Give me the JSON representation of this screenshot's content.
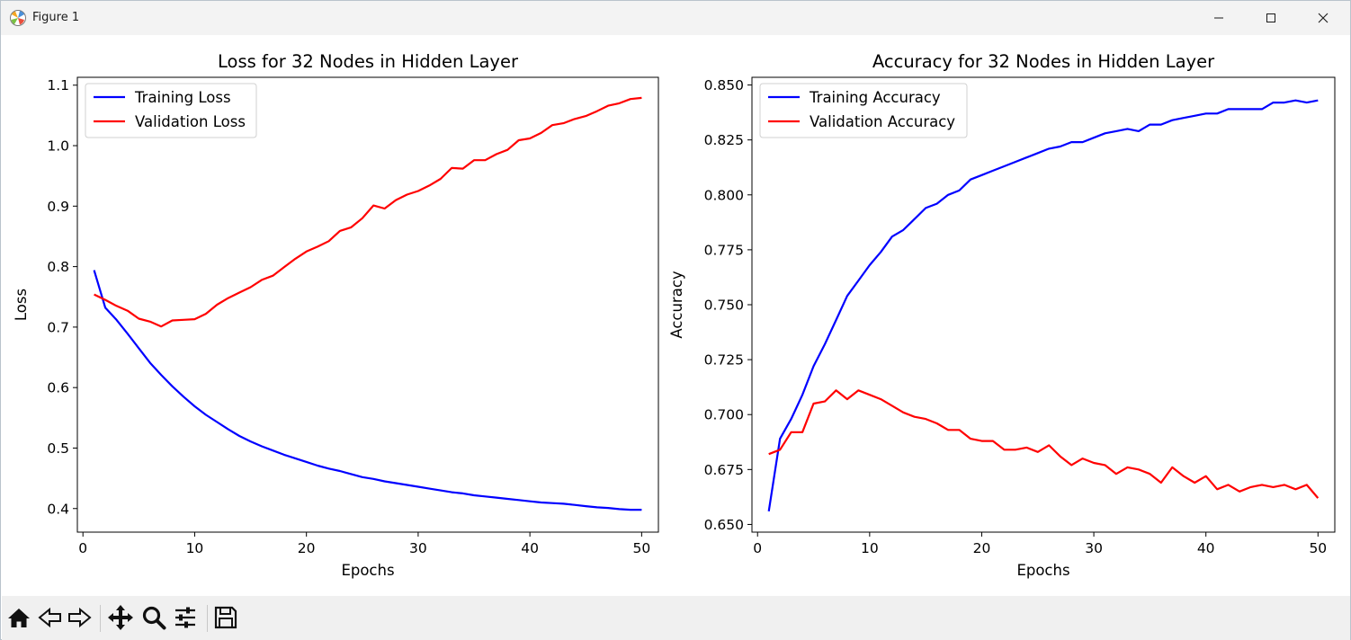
{
  "window": {
    "title": "Figure 1"
  },
  "toolbar": {
    "buttons": [
      {
        "name": "home-icon"
      },
      {
        "name": "back-arrow-icon"
      },
      {
        "name": "forward-arrow-icon"
      },
      {
        "name": "pan-icon"
      },
      {
        "name": "zoom-icon"
      },
      {
        "name": "configure-subplots-icon"
      },
      {
        "name": "save-icon"
      }
    ]
  },
  "chart_data": [
    {
      "type": "line",
      "title": "Loss for 32 Nodes in Hidden Layer",
      "xlabel": "Epochs",
      "ylabel": "Loss",
      "xlim": [
        -0.5,
        51.5
      ],
      "ylim": [
        0.361,
        1.113
      ],
      "xticks": [
        0,
        10,
        20,
        30,
        40,
        50
      ],
      "yticks": [
        0.4,
        0.5,
        0.6,
        0.7,
        0.8,
        0.9,
        1.0,
        1.1
      ],
      "ytick_labels": [
        "0.4",
        "0.5",
        "0.6",
        "0.7",
        "0.8",
        "0.9",
        "1.0",
        "1.1"
      ],
      "legend_position": "upper-left",
      "grid": false,
      "x": [
        1,
        2,
        3,
        4,
        5,
        6,
        7,
        8,
        9,
        10,
        11,
        12,
        13,
        14,
        15,
        16,
        17,
        18,
        19,
        20,
        21,
        22,
        23,
        24,
        25,
        26,
        27,
        28,
        29,
        30,
        31,
        32,
        33,
        34,
        35,
        36,
        37,
        38,
        39,
        40,
        41,
        42,
        43,
        44,
        45,
        46,
        47,
        48,
        49,
        50
      ],
      "series": [
        {
          "name": "Training Loss",
          "color": "#0000ff",
          "values": [
            0.794,
            0.732,
            0.712,
            0.689,
            0.665,
            0.641,
            0.621,
            0.602,
            0.585,
            0.569,
            0.555,
            0.543,
            0.531,
            0.52,
            0.511,
            0.503,
            0.496,
            0.489,
            0.483,
            0.477,
            0.471,
            0.466,
            0.462,
            0.457,
            0.452,
            0.449,
            0.445,
            0.442,
            0.439,
            0.436,
            0.433,
            0.43,
            0.427,
            0.425,
            0.422,
            0.42,
            0.418,
            0.416,
            0.414,
            0.412,
            0.41,
            0.409,
            0.408,
            0.406,
            0.404,
            0.402,
            0.401,
            0.399,
            0.398,
            0.398
          ]
        },
        {
          "name": "Validation Loss",
          "color": "#ff0000",
          "values": [
            0.754,
            0.745,
            0.735,
            0.727,
            0.714,
            0.709,
            0.701,
            0.711,
            0.712,
            0.713,
            0.722,
            0.737,
            0.748,
            0.757,
            0.766,
            0.778,
            0.785,
            0.799,
            0.813,
            0.825,
            0.833,
            0.842,
            0.859,
            0.865,
            0.88,
            0.901,
            0.896,
            0.91,
            0.919,
            0.925,
            0.934,
            0.945,
            0.963,
            0.962,
            0.976,
            0.976,
            0.986,
            0.993,
            1.009,
            1.012,
            1.021,
            1.034,
            1.037,
            1.044,
            1.049,
            1.057,
            1.066,
            1.07,
            1.077,
            1.079
          ]
        }
      ]
    },
    {
      "type": "line",
      "title": "Accuracy for 32 Nodes in Hidden Layer",
      "xlabel": "Epochs",
      "ylabel": "Accuracy",
      "xlim": [
        -0.5,
        51.5
      ],
      "ylim": [
        0.6465,
        0.8535
      ],
      "xticks": [
        0,
        10,
        20,
        30,
        40,
        50
      ],
      "yticks": [
        0.65,
        0.675,
        0.7,
        0.725,
        0.75,
        0.775,
        0.8,
        0.825,
        0.85
      ],
      "ytick_labels": [
        "0.650",
        "0.675",
        "0.700",
        "0.725",
        "0.750",
        "0.775",
        "0.800",
        "0.825",
        "0.850"
      ],
      "legend_position": "upper-left",
      "grid": false,
      "x": [
        1,
        2,
        3,
        4,
        5,
        6,
        7,
        8,
        9,
        10,
        11,
        12,
        13,
        14,
        15,
        16,
        17,
        18,
        19,
        20,
        21,
        22,
        23,
        24,
        25,
        26,
        27,
        28,
        29,
        30,
        31,
        32,
        33,
        34,
        35,
        36,
        37,
        38,
        39,
        40,
        41,
        42,
        43,
        44,
        45,
        46,
        47,
        48,
        49,
        50
      ],
      "series": [
        {
          "name": "Training Accuracy",
          "color": "#0000ff",
          "values": [
            0.656,
            0.689,
            0.698,
            0.709,
            0.722,
            0.732,
            0.743,
            0.754,
            0.761,
            0.768,
            0.774,
            0.781,
            0.784,
            0.789,
            0.794,
            0.796,
            0.8,
            0.802,
            0.807,
            0.809,
            0.811,
            0.813,
            0.815,
            0.817,
            0.819,
            0.821,
            0.822,
            0.824,
            0.824,
            0.826,
            0.828,
            0.829,
            0.83,
            0.829,
            0.832,
            0.832,
            0.834,
            0.835,
            0.836,
            0.837,
            0.837,
            0.839,
            0.839,
            0.839,
            0.839,
            0.842,
            0.842,
            0.843,
            0.842,
            0.843
          ]
        },
        {
          "name": "Validation Accuracy",
          "color": "#ff0000",
          "values": [
            0.682,
            0.684,
            0.692,
            0.692,
            0.705,
            0.706,
            0.711,
            0.707,
            0.711,
            0.709,
            0.707,
            0.704,
            0.701,
            0.699,
            0.698,
            0.696,
            0.693,
            0.693,
            0.689,
            0.688,
            0.688,
            0.684,
            0.684,
            0.685,
            0.683,
            0.686,
            0.681,
            0.677,
            0.68,
            0.678,
            0.677,
            0.673,
            0.676,
            0.675,
            0.673,
            0.669,
            0.676,
            0.672,
            0.669,
            0.672,
            0.666,
            0.668,
            0.665,
            0.667,
            0.668,
            0.667,
            0.668,
            0.666,
            0.668,
            0.662
          ]
        }
      ]
    }
  ]
}
